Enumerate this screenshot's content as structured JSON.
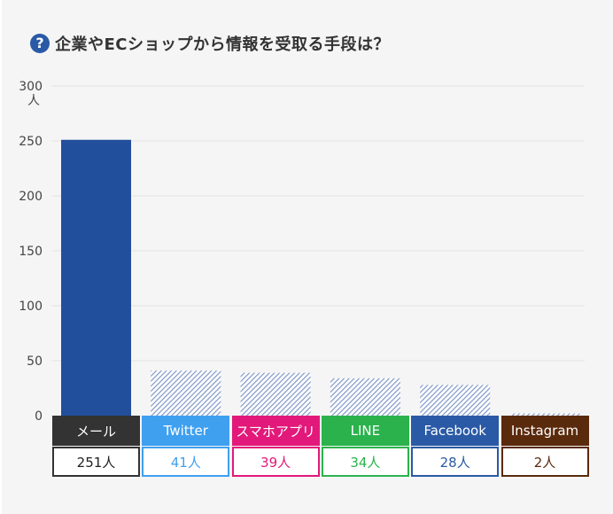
{
  "title": "企業やECショップから情報を受取る手段は？",
  "title_icon": "question-circle-icon",
  "title_icon_glyph": "?",
  "chart_data": {
    "type": "bar",
    "title": "企業やECショップから情報を受取る手段は？",
    "ylabel": "人",
    "ylim": [
      0,
      300
    ],
    "yticks": [
      0,
      50,
      100,
      150,
      200,
      250,
      300
    ],
    "grid": true,
    "categories": [
      "メール",
      "Twitter",
      "スマホアプリ",
      "LINE",
      "Facebook",
      "Instagram"
    ],
    "values": [
      251,
      41,
      39,
      34,
      28,
      2
    ],
    "value_labels": [
      "251人",
      "41人",
      "39人",
      "34人",
      "28人",
      "2人"
    ],
    "category_colors": [
      "#333333",
      "#3fa0f0",
      "#e2197a",
      "#2bb24c",
      "#2a5aa6",
      "#5a2a0c"
    ],
    "highlight_index": 0,
    "highlight_color": "#224f9c",
    "hatch_color": "#7f97c7"
  }
}
